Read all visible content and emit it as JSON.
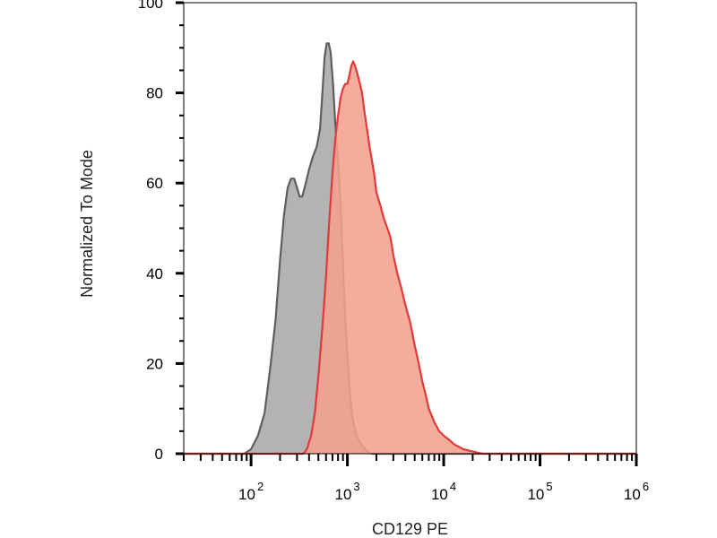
{
  "chart_data": {
    "type": "area",
    "xlabel": "CD129 PE",
    "ylabel": "Normalized To Mode",
    "x_scale": "log",
    "xlim": [
      20,
      1000000
    ],
    "ylim": [
      0,
      100
    ],
    "y_ticks": [
      0,
      20,
      40,
      60,
      80,
      100
    ],
    "x_tick_labels": [
      {
        "base": "10",
        "exp": "2",
        "value": 100
      },
      {
        "base": "10",
        "exp": "3",
        "value": 1000
      },
      {
        "base": "10",
        "exp": "4",
        "value": 10000
      },
      {
        "base": "10",
        "exp": "5",
        "value": 100000
      },
      {
        "base": "10",
        "exp": "6",
        "value": 1000000
      }
    ],
    "grid": false,
    "legend": "none",
    "series": [
      {
        "id": "isotype-control",
        "fill": "#a9a9a9",
        "stroke": "#5e5e5e",
        "points": [
          [
            20,
            0
          ],
          [
            85,
            0
          ],
          [
            100,
            1
          ],
          [
            118,
            4
          ],
          [
            138,
            9
          ],
          [
            160,
            20
          ],
          [
            180,
            30
          ],
          [
            200,
            43
          ],
          [
            220,
            53
          ],
          [
            240,
            59
          ],
          [
            260,
            61
          ],
          [
            280,
            61
          ],
          [
            300,
            59
          ],
          [
            320,
            57
          ],
          [
            340,
            57
          ],
          [
            370,
            60
          ],
          [
            400,
            63
          ],
          [
            440,
            66
          ],
          [
            480,
            68
          ],
          [
            520,
            72
          ],
          [
            550,
            80
          ],
          [
            580,
            88
          ],
          [
            610,
            91
          ],
          [
            640,
            91
          ],
          [
            670,
            89
          ],
          [
            710,
            82
          ],
          [
            750,
            73
          ],
          [
            800,
            65
          ],
          [
            850,
            55
          ],
          [
            900,
            42
          ],
          [
            950,
            30
          ],
          [
            1000,
            22
          ],
          [
            1050,
            15
          ],
          [
            1100,
            10
          ],
          [
            1150,
            7
          ],
          [
            1250,
            4
          ],
          [
            1400,
            2
          ],
          [
            1600,
            0.5
          ],
          [
            1800,
            0
          ],
          [
            1000000,
            0
          ]
        ]
      },
      {
        "id": "cd129-pe",
        "fill": "#f4a08f",
        "stroke": "#e03a3a",
        "points": [
          [
            20,
            0
          ],
          [
            350,
            0
          ],
          [
            380,
            1
          ],
          [
            420,
            4
          ],
          [
            460,
            9
          ],
          [
            500,
            17
          ],
          [
            550,
            28
          ],
          [
            600,
            39
          ],
          [
            650,
            52
          ],
          [
            700,
            62
          ],
          [
            750,
            70
          ],
          [
            800,
            75
          ],
          [
            850,
            79
          ],
          [
            900,
            81
          ],
          [
            950,
            82
          ],
          [
            1000,
            82
          ],
          [
            1050,
            84
          ],
          [
            1100,
            86
          ],
          [
            1150,
            87
          ],
          [
            1200,
            86
          ],
          [
            1280,
            84
          ],
          [
            1350,
            82
          ],
          [
            1420,
            80
          ],
          [
            1500,
            76
          ],
          [
            1600,
            72
          ],
          [
            1700,
            68
          ],
          [
            1800,
            65
          ],
          [
            1900,
            62
          ],
          [
            2000,
            58
          ],
          [
            2200,
            55
          ],
          [
            2400,
            52
          ],
          [
            2600,
            50
          ],
          [
            2800,
            48
          ],
          [
            3000,
            44
          ],
          [
            3300,
            40
          ],
          [
            3600,
            37
          ],
          [
            4000,
            33
          ],
          [
            4500,
            29
          ],
          [
            5000,
            24
          ],
          [
            5500,
            20
          ],
          [
            6000,
            16
          ],
          [
            6500,
            13
          ],
          [
            7000,
            10
          ],
          [
            8000,
            7
          ],
          [
            9000,
            5
          ],
          [
            10000,
            4
          ],
          [
            11500,
            3
          ],
          [
            13000,
            2
          ],
          [
            16000,
            1
          ],
          [
            20000,
            0.5
          ],
          [
            25000,
            0
          ],
          [
            1000000,
            0
          ]
        ]
      }
    ]
  }
}
